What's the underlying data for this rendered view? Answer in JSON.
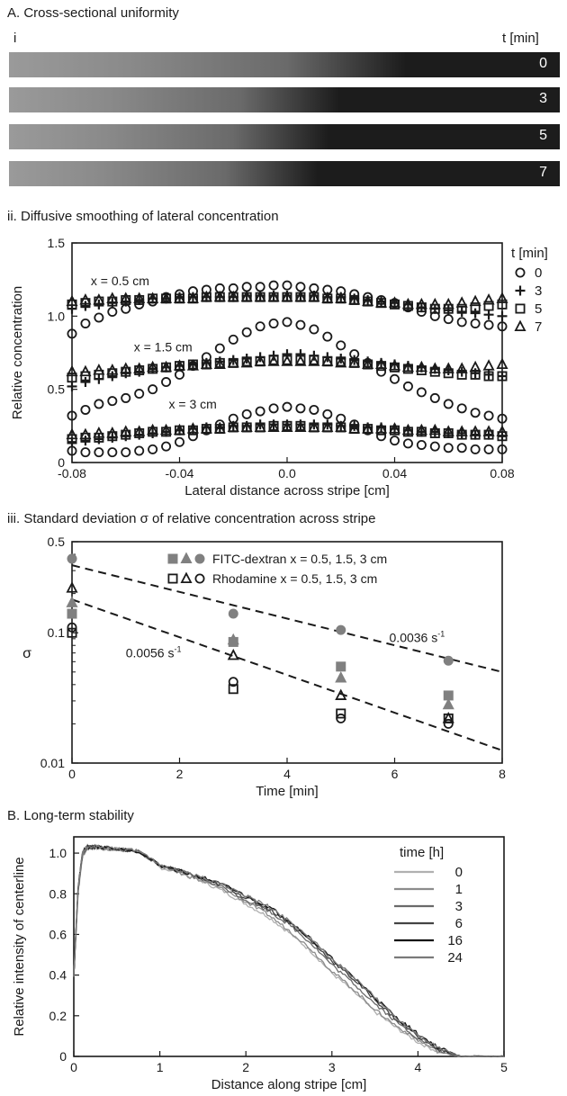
{
  "panel_a": {
    "title": "A. Cross-sectional uniformity",
    "sub_label": "i",
    "time_header": "t [min]",
    "strips": [
      {
        "time": "0",
        "bright_extent": 0.72
      },
      {
        "time": "3",
        "bright_extent": 0.6
      },
      {
        "time": "5",
        "bright_extent": 0.58
      },
      {
        "time": "7",
        "bright_extent": 0.56
      }
    ]
  },
  "colors": {
    "marker": "#1a1a1a",
    "fill_gray": "#808080",
    "line_gray": "#9a9a9a",
    "line_dark": "#1a1a1a"
  },
  "chart_data": [
    {
      "id": "chart-ii",
      "type": "scatter",
      "panel_title": "ii. Diffusive smoothing of lateral concentration",
      "xlabel": "Lateral distance across stripe [cm]",
      "ylabel": "Relative concentration",
      "xlim": [
        -0.08,
        0.08
      ],
      "ylim": [
        0,
        1.5
      ],
      "x_ticks": [
        -0.08,
        -0.04,
        0.0,
        0.04,
        0.08
      ],
      "x_tick_labels": [
        "-0.08",
        "-0.04",
        "0.0",
        "0.04",
        "0.08"
      ],
      "y_ticks": [
        0,
        0.5,
        1.0,
        1.5
      ],
      "y_tick_labels": [
        "0",
        "0.5",
        "1.0",
        "1.5"
      ],
      "legend_title": "t [min]",
      "legend_position": "right",
      "legend": [
        {
          "label": "0",
          "marker": "circle"
        },
        {
          "label": "3",
          "marker": "plus"
        },
        {
          "label": "5",
          "marker": "square"
        },
        {
          "label": "7",
          "marker": "triangle"
        }
      ],
      "annotations": [
        {
          "text": "x = 0.5 cm",
          "x": -0.073,
          "y": 1.21
        },
        {
          "text": "x = 1.5 cm",
          "x": -0.057,
          "y": 0.76
        },
        {
          "text": "x = 3 cm",
          "x": -0.044,
          "y": 0.37
        }
      ],
      "x": [
        -0.08,
        -0.075,
        -0.07,
        -0.065,
        -0.06,
        -0.055,
        -0.05,
        -0.045,
        -0.04,
        -0.035,
        -0.03,
        -0.025,
        -0.02,
        -0.015,
        -0.01,
        -0.005,
        0.0,
        0.005,
        0.01,
        0.015,
        0.02,
        0.025,
        0.03,
        0.035,
        0.04,
        0.045,
        0.05,
        0.055,
        0.06,
        0.065,
        0.07,
        0.075,
        0.08
      ],
      "series": [
        {
          "group": "x = 0.5 cm",
          "t": "0",
          "marker": "circle",
          "values": [
            0.88,
            0.95,
            0.99,
            1.03,
            1.05,
            1.08,
            1.1,
            1.13,
            1.15,
            1.17,
            1.18,
            1.19,
            1.19,
            1.2,
            1.2,
            1.21,
            1.21,
            1.2,
            1.19,
            1.18,
            1.17,
            1.15,
            1.13,
            1.11,
            1.09,
            1.06,
            1.03,
            1.0,
            0.98,
            0.96,
            0.95,
            0.94,
            0.93
          ]
        },
        {
          "group": "x = 0.5 cm",
          "t": "3",
          "marker": "plus",
          "values": [
            1.05,
            1.07,
            1.08,
            1.09,
            1.1,
            1.11,
            1.12,
            1.12,
            1.13,
            1.13,
            1.13,
            1.13,
            1.13,
            1.14,
            1.14,
            1.14,
            1.14,
            1.14,
            1.14,
            1.13,
            1.13,
            1.12,
            1.11,
            1.1,
            1.09,
            1.08,
            1.06,
            1.05,
            1.04,
            1.03,
            1.02,
            1.01,
            1.0
          ]
        },
        {
          "group": "x = 0.5 cm",
          "t": "5",
          "marker": "square",
          "values": [
            1.08,
            1.09,
            1.1,
            1.1,
            1.11,
            1.11,
            1.12,
            1.12,
            1.12,
            1.12,
            1.13,
            1.13,
            1.13,
            1.13,
            1.13,
            1.13,
            1.13,
            1.13,
            1.13,
            1.12,
            1.12,
            1.11,
            1.1,
            1.09,
            1.08,
            1.07,
            1.06,
            1.05,
            1.05,
            1.05,
            1.06,
            1.07,
            1.08
          ]
        },
        {
          "group": "x = 0.5 cm",
          "t": "7",
          "marker": "triangle",
          "values": [
            1.1,
            1.11,
            1.11,
            1.12,
            1.12,
            1.12,
            1.12,
            1.12,
            1.12,
            1.12,
            1.13,
            1.13,
            1.13,
            1.13,
            1.13,
            1.13,
            1.13,
            1.13,
            1.13,
            1.12,
            1.12,
            1.11,
            1.1,
            1.09,
            1.09,
            1.08,
            1.08,
            1.08,
            1.08,
            1.09,
            1.1,
            1.11,
            1.12
          ]
        },
        {
          "group": "x = 1.5 cm",
          "t": "0",
          "marker": "circle",
          "values": [
            0.32,
            0.36,
            0.4,
            0.42,
            0.44,
            0.47,
            0.5,
            0.55,
            0.6,
            0.66,
            0.72,
            0.78,
            0.84,
            0.89,
            0.93,
            0.95,
            0.96,
            0.94,
            0.91,
            0.86,
            0.8,
            0.74,
            0.68,
            0.62,
            0.57,
            0.52,
            0.48,
            0.44,
            0.4,
            0.37,
            0.34,
            0.32,
            0.3
          ]
        },
        {
          "group": "x = 1.5 cm",
          "t": "3",
          "marker": "plus",
          "values": [
            0.52,
            0.55,
            0.57,
            0.59,
            0.61,
            0.62,
            0.64,
            0.65,
            0.66,
            0.67,
            0.68,
            0.69,
            0.7,
            0.71,
            0.72,
            0.73,
            0.74,
            0.74,
            0.73,
            0.72,
            0.71,
            0.7,
            0.69,
            0.68,
            0.67,
            0.66,
            0.65,
            0.64,
            0.63,
            0.62,
            0.61,
            0.6,
            0.59
          ]
        },
        {
          "group": "x = 1.5 cm",
          "t": "5",
          "marker": "square",
          "values": [
            0.58,
            0.59,
            0.6,
            0.61,
            0.62,
            0.63,
            0.64,
            0.65,
            0.66,
            0.67,
            0.67,
            0.68,
            0.68,
            0.69,
            0.69,
            0.7,
            0.7,
            0.7,
            0.7,
            0.69,
            0.69,
            0.68,
            0.67,
            0.66,
            0.65,
            0.64,
            0.63,
            0.62,
            0.61,
            0.6,
            0.6,
            0.59,
            0.59
          ]
        },
        {
          "group": "x = 1.5 cm",
          "t": "7",
          "marker": "triangle",
          "values": [
            0.62,
            0.62,
            0.63,
            0.63,
            0.64,
            0.64,
            0.65,
            0.65,
            0.66,
            0.66,
            0.67,
            0.67,
            0.68,
            0.68,
            0.69,
            0.69,
            0.69,
            0.69,
            0.69,
            0.69,
            0.68,
            0.68,
            0.67,
            0.67,
            0.66,
            0.65,
            0.65,
            0.64,
            0.64,
            0.64,
            0.65,
            0.66,
            0.67
          ]
        },
        {
          "group": "x = 3 cm",
          "t": "0",
          "marker": "circle",
          "values": [
            0.08,
            0.07,
            0.07,
            0.07,
            0.07,
            0.08,
            0.09,
            0.11,
            0.14,
            0.18,
            0.22,
            0.26,
            0.3,
            0.33,
            0.35,
            0.37,
            0.38,
            0.37,
            0.36,
            0.33,
            0.3,
            0.26,
            0.22,
            0.18,
            0.15,
            0.13,
            0.12,
            0.11,
            0.1,
            0.1,
            0.09,
            0.09,
            0.09
          ]
        },
        {
          "group": "x = 3 cm",
          "t": "3",
          "marker": "plus",
          "values": [
            0.14,
            0.15,
            0.16,
            0.17,
            0.18,
            0.19,
            0.2,
            0.21,
            0.22,
            0.23,
            0.24,
            0.24,
            0.25,
            0.25,
            0.26,
            0.26,
            0.26,
            0.26,
            0.26,
            0.26,
            0.25,
            0.25,
            0.24,
            0.24,
            0.23,
            0.22,
            0.21,
            0.21,
            0.2,
            0.2,
            0.19,
            0.19,
            0.18
          ]
        },
        {
          "group": "x = 3 cm",
          "t": "5",
          "marker": "square",
          "values": [
            0.16,
            0.17,
            0.17,
            0.18,
            0.19,
            0.2,
            0.21,
            0.21,
            0.22,
            0.22,
            0.23,
            0.23,
            0.24,
            0.24,
            0.24,
            0.25,
            0.25,
            0.25,
            0.24,
            0.24,
            0.24,
            0.23,
            0.23,
            0.22,
            0.22,
            0.21,
            0.21,
            0.2,
            0.2,
            0.19,
            0.19,
            0.19,
            0.18
          ]
        },
        {
          "group": "x = 3 cm",
          "t": "7",
          "marker": "triangle",
          "values": [
            0.19,
            0.19,
            0.2,
            0.2,
            0.21,
            0.21,
            0.22,
            0.22,
            0.22,
            0.23,
            0.23,
            0.23,
            0.24,
            0.24,
            0.24,
            0.24,
            0.24,
            0.24,
            0.24,
            0.24,
            0.24,
            0.23,
            0.23,
            0.23,
            0.23,
            0.22,
            0.22,
            0.22,
            0.21,
            0.21,
            0.21,
            0.21,
            0.21
          ]
        }
      ]
    },
    {
      "id": "chart-iii",
      "type": "scatter",
      "panel_title": "iii.  Standard deviation σ of relative concentration across stripe",
      "xlabel": "Time [min]",
      "ylabel": "σ",
      "xlim": [
        0,
        8
      ],
      "ylim": [
        0.01,
        0.5
      ],
      "y_scale": "log",
      "x_ticks": [
        0,
        2,
        4,
        6,
        8
      ],
      "x_tick_labels": [
        "0",
        "2",
        "4",
        "6",
        "8"
      ],
      "y_ticks": [
        0.01,
        0.1,
        0.5
      ],
      "y_tick_labels": [
        "0.01",
        "0.1",
        "0.5"
      ],
      "legend_position": "top-right",
      "legend": [
        {
          "label": "FITC-dextran x = 0.5, 1.5, 3 cm",
          "style": "filled"
        },
        {
          "label": "Rhodamine x = 0.5, 1.5, 3 cm",
          "style": "open"
        }
      ],
      "series": [
        {
          "dye": "FITC-dextran",
          "position": "x = 0.5 cm",
          "marker": "square",
          "filled": true,
          "x": [
            0,
            3,
            5,
            7
          ],
          "y": [
            0.14,
            0.085,
            0.055,
            0.033
          ]
        },
        {
          "dye": "FITC-dextran",
          "position": "x = 1.5 cm",
          "marker": "triangle",
          "filled": true,
          "x": [
            0,
            3,
            5,
            7
          ],
          "y": [
            0.17,
            0.088,
            0.045,
            0.028
          ]
        },
        {
          "dye": "FITC-dextran",
          "position": "x = 3 cm",
          "marker": "circle",
          "filled": true,
          "x": [
            0,
            3,
            5,
            7
          ],
          "y": [
            0.37,
            0.14,
            0.105,
            0.061
          ]
        },
        {
          "dye": "Rhodamine",
          "position": "x = 0.5 cm",
          "marker": "square",
          "filled": false,
          "x": [
            0,
            3,
            5,
            7
          ],
          "y": [
            0.1,
            0.037,
            0.024,
            0.022
          ]
        },
        {
          "dye": "Rhodamine",
          "position": "x = 1.5 cm",
          "marker": "triangle",
          "filled": false,
          "x": [
            0,
            3,
            5,
            7
          ],
          "y": [
            0.22,
            0.067,
            0.033,
            0.022
          ]
        },
        {
          "dye": "Rhodamine",
          "position": "x = 3 cm",
          "marker": "circle",
          "filled": false,
          "x": [
            0,
            3,
            5,
            7
          ],
          "y": [
            0.11,
            0.042,
            0.022,
            0.02
          ]
        }
      ],
      "fit_lines": [
        {
          "label": "0.0036 s-1",
          "rate_text": "0.0036 s",
          "exp_text": "-1",
          "x": [
            0,
            8
          ],
          "y": [
            0.33,
            0.05
          ]
        },
        {
          "label": "0.0056 s-1",
          "rate_text": "0.0056 s",
          "exp_text": "-1",
          "x": [
            0,
            8
          ],
          "y": [
            0.18,
            0.0125
          ]
        }
      ]
    },
    {
      "id": "chart-b",
      "type": "line",
      "panel_title": "B. Long-term stability",
      "xlabel": "Distance along stripe [cm]",
      "ylabel": "Relative intensity of centerline",
      "xlim": [
        0,
        5
      ],
      "ylim": [
        0,
        1.08
      ],
      "x_ticks": [
        0,
        1,
        2,
        3,
        4,
        5
      ],
      "x_tick_labels": [
        "0",
        "1",
        "2",
        "3",
        "4",
        "5"
      ],
      "y_ticks": [
        0,
        0.2,
        0.4,
        0.6,
        0.8,
        1.0
      ],
      "y_tick_labels": [
        "0",
        "0.2",
        "0.4",
        "0.6",
        "0.8",
        "1.0"
      ],
      "legend_title": "time [h]",
      "legend_position": "right",
      "x": [
        0,
        0.05,
        0.1,
        0.15,
        0.2,
        0.3,
        0.5,
        0.75,
        1.0,
        1.25,
        1.5,
        1.75,
        2.0,
        2.25,
        2.5,
        2.75,
        3.0,
        3.25,
        3.5,
        3.75,
        4.0,
        4.25,
        4.5,
        4.75,
        5.0
      ],
      "series": [
        {
          "name": "0",
          "color": "#b0b0b0",
          "values": [
            0.4,
            0.8,
            0.98,
            1.02,
            1.03,
            1.02,
            1.02,
            1.01,
            0.93,
            0.9,
            0.86,
            0.81,
            0.75,
            0.69,
            0.61,
            0.52,
            0.41,
            0.32,
            0.22,
            0.14,
            0.07,
            0.02,
            0.0,
            0.0,
            0.0
          ]
        },
        {
          "name": "1",
          "color": "#8c8c8c",
          "values": [
            0.4,
            0.81,
            0.99,
            1.02,
            1.03,
            1.03,
            1.02,
            1.01,
            0.94,
            0.9,
            0.86,
            0.82,
            0.76,
            0.7,
            0.62,
            0.53,
            0.42,
            0.33,
            0.23,
            0.15,
            0.08,
            0.02,
            0.0,
            0.0,
            0.0
          ]
        },
        {
          "name": "3",
          "color": "#6a6a6a",
          "values": [
            0.4,
            0.82,
            0.99,
            1.03,
            1.03,
            1.03,
            1.02,
            1.01,
            0.94,
            0.91,
            0.87,
            0.83,
            0.77,
            0.72,
            0.65,
            0.56,
            0.45,
            0.36,
            0.26,
            0.17,
            0.09,
            0.03,
            0.0,
            0.0,
            0.0
          ]
        },
        {
          "name": "6",
          "color": "#444444",
          "values": [
            0.4,
            0.82,
            1.0,
            1.03,
            1.03,
            1.03,
            1.02,
            1.01,
            0.94,
            0.91,
            0.87,
            0.84,
            0.78,
            0.73,
            0.66,
            0.57,
            0.47,
            0.38,
            0.28,
            0.18,
            0.1,
            0.03,
            0.0,
            0.0,
            0.0
          ]
        },
        {
          "name": "16",
          "color": "#111111",
          "values": [
            0.4,
            0.83,
            1.0,
            1.03,
            1.03,
            1.03,
            1.02,
            1.01,
            0.94,
            0.91,
            0.88,
            0.84,
            0.79,
            0.74,
            0.67,
            0.58,
            0.48,
            0.39,
            0.29,
            0.19,
            0.11,
            0.04,
            0.0,
            0.0,
            0.0
          ]
        },
        {
          "name": "24",
          "color": "#7a7a7a",
          "values": [
            0.4,
            0.82,
            1.0,
            1.03,
            1.03,
            1.03,
            1.02,
            1.01,
            0.94,
            0.91,
            0.88,
            0.84,
            0.79,
            0.74,
            0.67,
            0.58,
            0.48,
            0.39,
            0.29,
            0.19,
            0.11,
            0.04,
            0.0,
            0.0,
            0.0
          ]
        }
      ]
    }
  ]
}
